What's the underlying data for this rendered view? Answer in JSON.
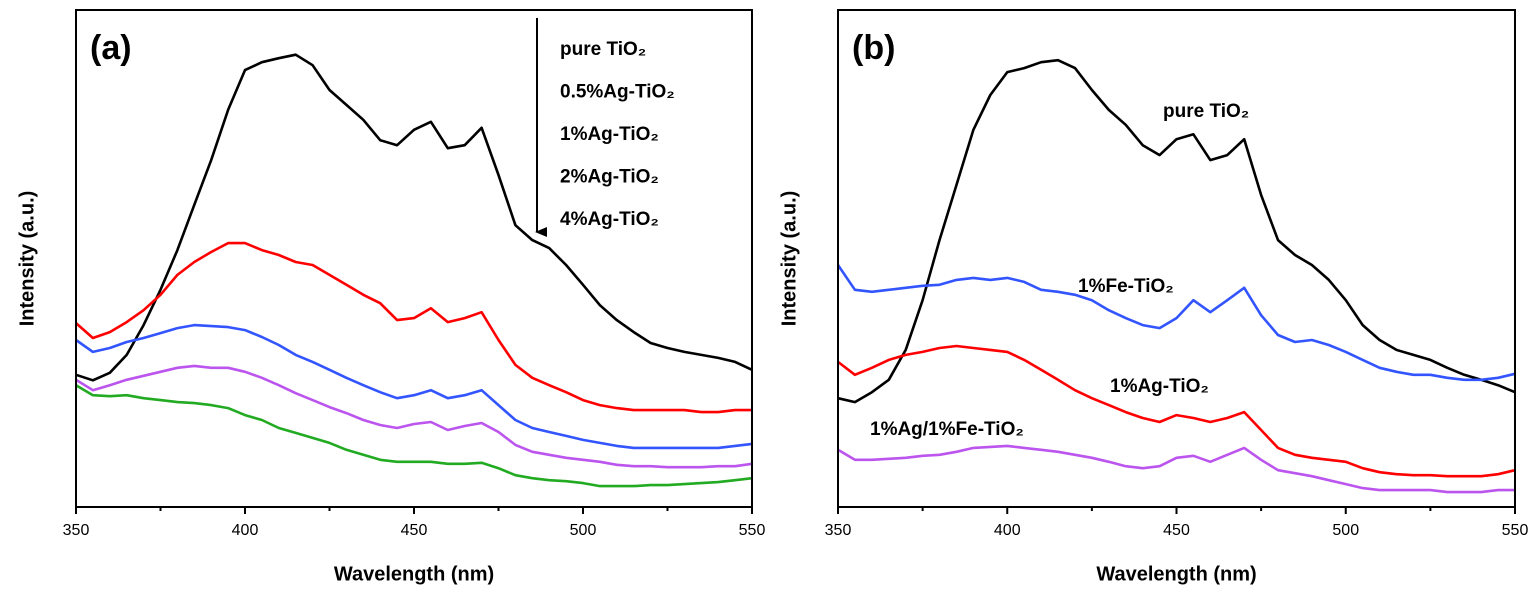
{
  "chart_data": [
    {
      "type": "line",
      "panel_label": "(a)",
      "x_label": "Wavelength (nm)",
      "y_label": "Intensity (a.u.)",
      "xlim": [
        350,
        550
      ],
      "xticks": [
        350,
        400,
        450,
        500,
        550
      ],
      "xminorticks": [
        375,
        425,
        475,
        525
      ],
      "ylim": [
        0,
        100
      ],
      "x": [
        350,
        355,
        360,
        365,
        370,
        375,
        380,
        385,
        390,
        395,
        400,
        405,
        410,
        415,
        420,
        425,
        430,
        435,
        440,
        445,
        450,
        455,
        460,
        465,
        470,
        475,
        480,
        485,
        490,
        495,
        500,
        505,
        510,
        515,
        520,
        525,
        530,
        535,
        540,
        545,
        550
      ],
      "series": [
        {
          "name": "pure TiO₂",
          "color": "#000000",
          "values": [
            26.6,
            25.5,
            27,
            30.6,
            36.6,
            43.7,
            51.7,
            60.8,
            69.8,
            79.9,
            87.9,
            89.5,
            90.3,
            91,
            88.9,
            83.9,
            80.9,
            77.9,
            73.8,
            72.8,
            75.9,
            77.5,
            72.2,
            72.8,
            76.3,
            66.8,
            56.7,
            53.7,
            52.1,
            48.7,
            44.7,
            40.6,
            37.6,
            35.2,
            33,
            32,
            31.2,
            30.6,
            30,
            29.2,
            27.6
          ]
        },
        {
          "name": "0.5%Ag-TiO₂",
          "color": "#ff0000",
          "values": [
            37,
            34,
            35.2,
            37.2,
            39.6,
            42.7,
            46.7,
            49.3,
            51.3,
            53.1,
            53.1,
            51.7,
            50.7,
            49.3,
            48.7,
            46.7,
            44.7,
            42.7,
            41,
            37.6,
            38,
            40,
            37.2,
            38,
            39.2,
            33.6,
            28.6,
            26,
            24.5,
            23.1,
            21.5,
            20.5,
            19.9,
            19.5,
            19.5,
            19.5,
            19.5,
            19.1,
            19.1,
            19.5,
            19.5
          ]
        },
        {
          "name": "1%Ag-TiO₂",
          "color": "#3355ff",
          "values": [
            33.6,
            31.2,
            32,
            33.2,
            34,
            35,
            36,
            36.6,
            36.4,
            36.2,
            35.6,
            34.2,
            32.6,
            30.6,
            29.2,
            27.6,
            26,
            24.5,
            23.1,
            21.9,
            22.5,
            23.5,
            21.9,
            22.5,
            23.5,
            20.5,
            17.5,
            15.9,
            15.1,
            14.3,
            13.5,
            12.9,
            12.3,
            11.9,
            11.9,
            11.9,
            11.9,
            11.9,
            11.9,
            12.3,
            12.7
          ]
        },
        {
          "name": "2%Ag-TiO₂",
          "color": "#bb55ee",
          "values": [
            25.6,
            23.5,
            24.5,
            25.6,
            26.4,
            27.2,
            28,
            28.4,
            28,
            28,
            27.2,
            26,
            24.5,
            22.9,
            21.5,
            20.1,
            18.9,
            17.5,
            16.5,
            15.9,
            16.7,
            17.1,
            15.5,
            16.3,
            16.9,
            15.1,
            12.5,
            11.1,
            10.5,
            9.9,
            9.5,
            9.1,
            8.5,
            8.2,
            8.2,
            8,
            8,
            8,
            8.2,
            8.2,
            8.7
          ]
        },
        {
          "name": "4%Ag-TiO₂",
          "color": "#22aa22",
          "values": [
            24.5,
            22.5,
            22.3,
            22.5,
            21.9,
            21.5,
            21.1,
            20.9,
            20.5,
            19.9,
            18.5,
            17.5,
            15.9,
            14.9,
            13.9,
            12.9,
            11.5,
            10.5,
            9.5,
            9.1,
            9.1,
            9.1,
            8.7,
            8.7,
            8.9,
            7.8,
            6.4,
            5.8,
            5.4,
            5.2,
            4.8,
            4.2,
            4.2,
            4.2,
            4.4,
            4.4,
            4.6,
            4.8,
            5,
            5.4,
            5.8
          ]
        }
      ]
    },
    {
      "type": "line",
      "panel_label": "(b)",
      "x_label": "Wavelength (nm)",
      "y_label": "Intensity (a.u.)",
      "xlim": [
        350,
        550
      ],
      "xticks": [
        350,
        400,
        450,
        500,
        550
      ],
      "xminorticks": [
        375,
        425,
        475,
        525
      ],
      "ylim": [
        0,
        100
      ],
      "x": [
        350,
        355,
        360,
        365,
        370,
        375,
        380,
        385,
        390,
        395,
        400,
        405,
        410,
        415,
        420,
        425,
        430,
        435,
        440,
        445,
        450,
        455,
        460,
        465,
        470,
        475,
        480,
        485,
        490,
        495,
        500,
        505,
        510,
        515,
        520,
        525,
        530,
        535,
        540,
        545,
        550
      ],
      "series": [
        {
          "name": "pure TiO₂",
          "color": "#000000",
          "values": [
            21.9,
            21.1,
            23.1,
            25.6,
            31.6,
            41.6,
            53.7,
            64.8,
            75.9,
            82.9,
            87.5,
            88.3,
            89.5,
            89.9,
            88.3,
            83.9,
            79.9,
            76.9,
            72.8,
            70.8,
            74,
            75,
            69.8,
            70.8,
            74,
            62.8,
            53.7,
            50.7,
            48.7,
            45.7,
            41.6,
            36.6,
            33.6,
            31.6,
            30.6,
            29.6,
            28,
            26.6,
            25.6,
            24.5,
            23.1
          ]
        },
        {
          "name": "1%Fe-TiO₂",
          "color": "#3355ff",
          "values": [
            48.7,
            43.7,
            43.3,
            43.7,
            44.1,
            44.5,
            44.7,
            45.7,
            46.1,
            45.7,
            46.1,
            45.3,
            43.7,
            43.3,
            42.7,
            41.6,
            39.6,
            38,
            36.6,
            36,
            38,
            41.6,
            39.2,
            41.6,
            44.1,
            38.6,
            34.6,
            33.2,
            33.6,
            32.6,
            31.2,
            29.6,
            28,
            27.2,
            26.6,
            26.6,
            26,
            25.6,
            25.6,
            26,
            26.8
          ]
        },
        {
          "name": "1%Ag-TiO₂",
          "color": "#ff0000",
          "values": [
            29.2,
            26.6,
            28,
            29.6,
            30.6,
            31.2,
            32,
            32.4,
            32,
            31.6,
            31.2,
            29.6,
            27.6,
            25.6,
            23.5,
            21.9,
            20.5,
            19.1,
            17.9,
            17.1,
            18.5,
            17.9,
            17.1,
            17.9,
            19.1,
            15.5,
            11.9,
            10.5,
            9.9,
            9.5,
            9.1,
            7.8,
            7,
            6.6,
            6.4,
            6.4,
            6.2,
            6.2,
            6.2,
            6.6,
            7.4
          ]
        },
        {
          "name": "1%Ag/1%Fe-TiO₂",
          "color": "#bb55ee",
          "values": [
            11.5,
            9.5,
            9.5,
            9.7,
            9.9,
            10.3,
            10.5,
            11.1,
            11.9,
            12.1,
            12.3,
            11.9,
            11.5,
            11.1,
            10.5,
            9.9,
            9.1,
            8.2,
            7.8,
            8.2,
            9.9,
            10.3,
            9.1,
            10.5,
            11.9,
            9.5,
            7.4,
            6.8,
            6.2,
            5.4,
            4.6,
            3.8,
            3.4,
            3.4,
            3.4,
            3.4,
            3,
            3,
            3,
            3.4,
            3.4
          ]
        }
      ]
    }
  ]
}
